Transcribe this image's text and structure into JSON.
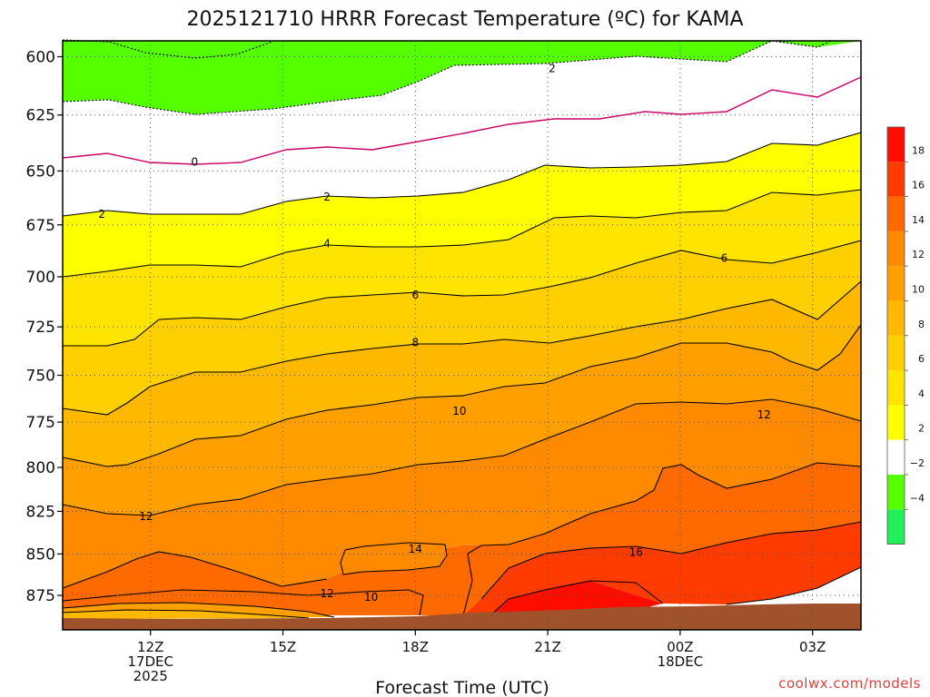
{
  "chart_data": {
    "type": "heatmap",
    "title": "2025121710 HRRR Forecast Temperature (ºC) for KAMA",
    "xlabel": "Forecast Time (UTC)",
    "credit": "coolwx.com/models",
    "x_ticks": [
      {
        "hour": 12,
        "lines": [
          "12Z",
          "17DEC",
          "2025"
        ]
      },
      {
        "hour": 15,
        "lines": [
          "15Z"
        ]
      },
      {
        "hour": 18,
        "lines": [
          "18Z"
        ]
      },
      {
        "hour": 21,
        "lines": [
          "21Z"
        ]
      },
      {
        "hour": 24,
        "lines": [
          "00Z",
          "18DEC"
        ]
      },
      {
        "hour": 27,
        "lines": [
          "03Z"
        ]
      }
    ],
    "x_range_hours": [
      10,
      28
    ],
    "y_ticks": [
      600,
      625,
      650,
      675,
      700,
      725,
      750,
      775,
      800,
      825,
      850,
      875
    ],
    "y_range_hpa": [
      590,
      890
    ],
    "y_scale": "log-pressure",
    "levels": [
      -4,
      -2,
      0,
      2,
      4,
      6,
      8,
      10,
      12,
      14,
      16,
      18
    ],
    "colors": {
      "band_-6_-4": "#22f05a",
      "band_-4_-2": "#55ff00",
      "band_-2_2": "#ffffff",
      "band_2_4": "#ffff00",
      "band_4_6": "#ffe400",
      "band_6_8": "#ffcf00",
      "band_8_10": "#ffb800",
      "band_10_12": "#ffa000",
      "band_12_14": "#ff8a00",
      "band_14_16": "#ff6a00",
      "band_16_18": "#ff3b00",
      "band_18_20": "#ff0d00",
      "terrain": "#a0522d",
      "zero_line": "#cc0066"
    },
    "colorbar_labels": [
      "18",
      "16",
      "14",
      "12",
      "10",
      "8",
      "6",
      "4",
      "2",
      "−2",
      "−4"
    ],
    "contour_labels": [
      {
        "text": "2",
        "hour": 21.1,
        "p": 605
      },
      {
        "text": "0",
        "hour": 13.0,
        "p": 646
      },
      {
        "text": "2",
        "hour": 10.9,
        "p": 670
      },
      {
        "text": "2",
        "hour": 16.0,
        "p": 662
      },
      {
        "text": "4",
        "hour": 16.0,
        "p": 684
      },
      {
        "text": "6",
        "hour": 18.0,
        "p": 709
      },
      {
        "text": "6",
        "hour": 25.0,
        "p": 691
      },
      {
        "text": "8",
        "hour": 18.0,
        "p": 733
      },
      {
        "text": "10",
        "hour": 19.0,
        "p": 769
      },
      {
        "text": "12",
        "hour": 25.9,
        "p": 771
      },
      {
        "text": "12",
        "hour": 11.9,
        "p": 828
      },
      {
        "text": "14",
        "hour": 18.0,
        "p": 847
      },
      {
        "text": "16",
        "hour": 23.0,
        "p": 849
      },
      {
        "text": "12",
        "hour": 16.0,
        "p": 874
      },
      {
        "text": "10",
        "hour": 17.0,
        "p": 876
      }
    ]
  }
}
